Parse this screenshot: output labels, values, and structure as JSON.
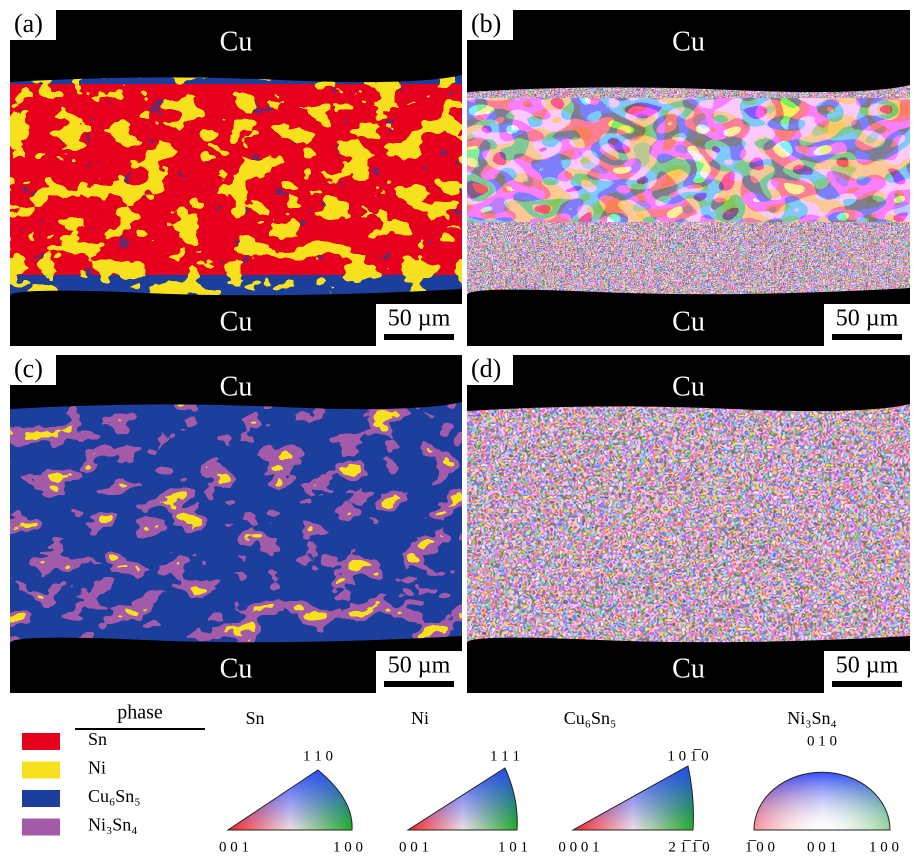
{
  "panels": [
    {
      "label": "(a)",
      "top": "Cu",
      "bottom": "Cu",
      "scale": "50 µm"
    },
    {
      "label": "(b)",
      "top": "Cu",
      "bottom": "Cu",
      "scale": "50 µm"
    },
    {
      "label": "(c)",
      "top": "Cu",
      "bottom": "Cu",
      "scale": "50 µm"
    },
    {
      "label": "(d)",
      "top": "Cu",
      "bottom": "Cu",
      "scale": "50 µm"
    }
  ],
  "legend": {
    "title": "phase",
    "items": [
      {
        "name": "Sn",
        "color": "#e6001e"
      },
      {
        "name": "Ni",
        "color": "#f6e11c"
      },
      {
        "name": "Cu₆Sn₅",
        "color": "#1c3f9e"
      },
      {
        "name": "Ni₃Sn₄",
        "color": "#a35aa8"
      }
    ]
  },
  "ipf": [
    {
      "title": "Sn",
      "corners": [
        "0 0 1",
        "1 1 0",
        "1 0 0"
      ]
    },
    {
      "title": "Ni",
      "corners": [
        "0 0 1",
        "1 1 1",
        "1 0 1"
      ]
    },
    {
      "title": "Cu₆Sn₅",
      "corners": [
        "0 0 0 1",
        "1 0 1̅ 0",
        "2 1̅ 1̅ 0"
      ]
    },
    {
      "title": "Ni₃Sn₄",
      "corners": [
        "1̅ 0 0",
        "0 1 0",
        "0 0 1",
        "1 0 0"
      ]
    }
  ]
}
